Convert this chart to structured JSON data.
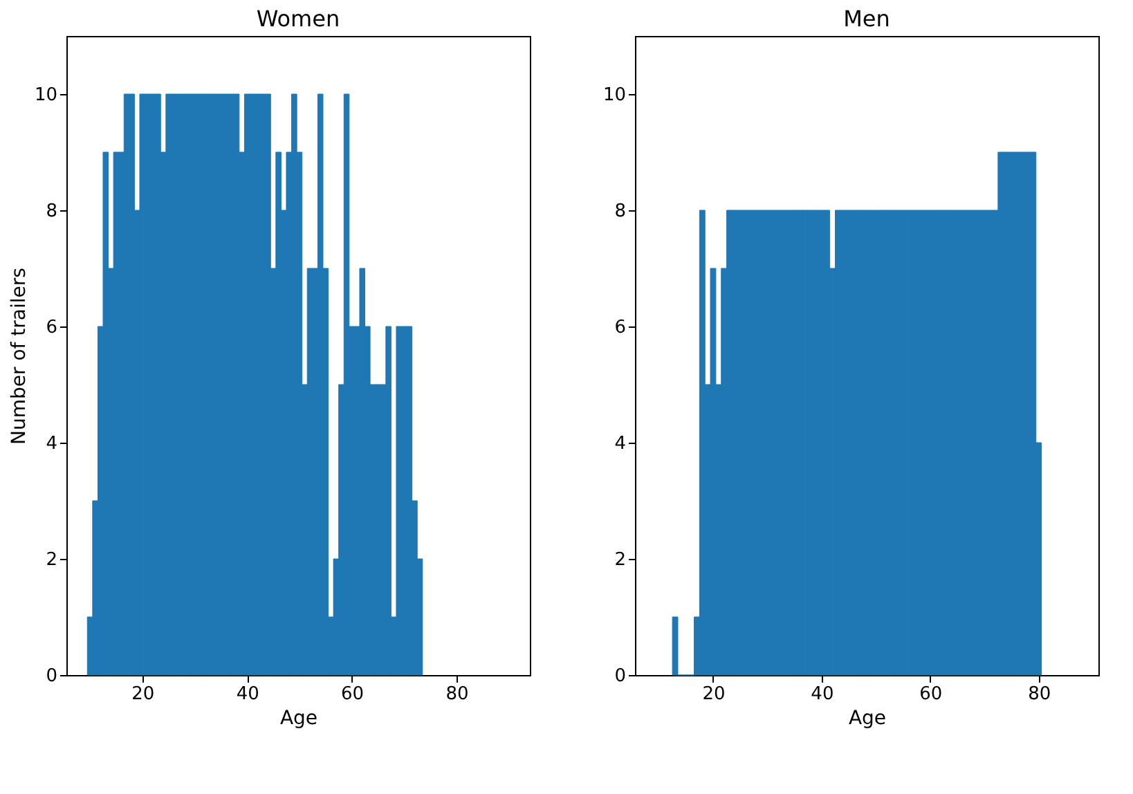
{
  "chart_data": [
    {
      "type": "histogram",
      "title": "Women",
      "xlabel": "Age",
      "ylabel": "Number of trailers",
      "color": "#1f77b4",
      "bins": [
        9.5,
        10.5,
        11.5,
        12.5,
        13.5,
        14.5,
        15.5,
        16.5,
        17.5,
        18.5,
        19.5,
        20.5,
        21.5,
        22.5,
        23.5,
        24.5,
        25.5,
        26.5,
        27.5,
        28.5,
        29.5,
        30.5,
        31.5,
        32.5,
        33.5,
        34.5,
        35.5,
        36.5,
        37.5,
        38.5,
        39.5,
        40.5,
        41.5,
        42.5,
        43.5,
        44.5,
        45.5,
        46.5,
        47.5,
        48.5,
        49.5,
        50.5,
        51.5,
        52.5,
        53.5,
        54.5,
        55.5,
        56.5,
        57.5,
        58.5,
        59.5,
        60.5,
        61.5,
        62.5,
        63.5,
        64.5,
        65.5,
        66.5,
        67.5,
        68.5,
        69.5,
        70.5,
        71.5,
        72.5,
        73.5
      ],
      "values": [
        1,
        3,
        6,
        9,
        7,
        9,
        9,
        10,
        10,
        8,
        10,
        10,
        10,
        10,
        9,
        10,
        10,
        10,
        10,
        10,
        10,
        10,
        10,
        10,
        10,
        10,
        10,
        10,
        10,
        9,
        10,
        10,
        10,
        10,
        10,
        7,
        9,
        8,
        9,
        10,
        9,
        5,
        7,
        7,
        10,
        7,
        1,
        2,
        5,
        10,
        6,
        6,
        7,
        6,
        5,
        5,
        5,
        6,
        1,
        6,
        6,
        6,
        3,
        2
      ],
      "xlim": [
        5.5,
        94
      ],
      "xticks": [
        20,
        40,
        60,
        80
      ],
      "ylim": [
        0,
        11
      ],
      "yticks": [
        0,
        2,
        4,
        6,
        8,
        10
      ],
      "grid": false
    },
    {
      "type": "histogram",
      "title": "Men",
      "xlabel": "Age",
      "color": "#1f77b4",
      "bins": [
        12.5,
        13.5,
        14.5,
        15.5,
        16.5,
        17.5,
        18.5,
        19.5,
        20.5,
        21.5,
        22.5,
        23.5,
        24.5,
        25.5,
        26.5,
        27.5,
        28.5,
        29.5,
        30.5,
        31.5,
        32.5,
        33.5,
        34.5,
        35.5,
        36.5,
        37.5,
        38.5,
        39.5,
        40.5,
        41.5,
        42.5,
        43.5,
        44.5,
        45.5,
        46.5,
        47.5,
        48.5,
        49.5,
        50.5,
        51.5,
        52.5,
        53.5,
        54.5,
        55.5,
        56.5,
        57.5,
        58.5,
        59.5,
        60.5,
        61.5,
        62.5,
        63.5,
        64.5,
        65.5,
        66.5,
        67.5,
        68.5,
        69.5,
        70.5,
        71.5,
        72.5,
        73.5,
        74.5,
        75.5,
        76.5,
        77.5,
        78.5,
        79.5,
        80.5
      ],
      "values": [
        1,
        0,
        0,
        0,
        1,
        8,
        5,
        7,
        5,
        7,
        8,
        8,
        8,
        8,
        8,
        8,
        8,
        8,
        8,
        8,
        8,
        8,
        8,
        8,
        8,
        8,
        8,
        8,
        8,
        7,
        8,
        8,
        8,
        8,
        8,
        8,
        8,
        8,
        8,
        8,
        8,
        8,
        8,
        8,
        8,
        8,
        8,
        8,
        8,
        8,
        8,
        8,
        8,
        8,
        8,
        8,
        8,
        8,
        8,
        8,
        9,
        9,
        9,
        9,
        9,
        9,
        9,
        4
      ],
      "xlim": [
        5.6,
        91
      ],
      "xticks": [
        20,
        40,
        60,
        80
      ],
      "ylim": [
        0,
        11
      ],
      "yticks": [
        0,
        2,
        4,
        6,
        8,
        10
      ],
      "grid": false
    }
  ]
}
